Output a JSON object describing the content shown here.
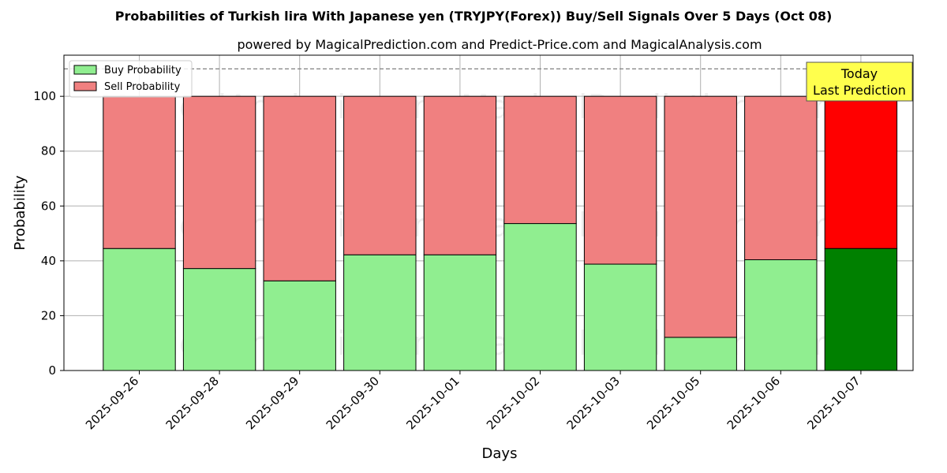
{
  "chart_data": {
    "type": "bar",
    "stacked": true,
    "title": "Probabilities of Turkish lira With Japanese yen (TRYJPY(Forex)) Buy/Sell Signals Over 5 Days (Oct 08)",
    "subtitle": "powered by MagicalPrediction.com and Predict-Price.com and MagicalAnalysis.com",
    "xlabel": "Days",
    "ylabel": "Probability",
    "ylim": [
      0,
      115
    ],
    "yticks": [
      0,
      20,
      40,
      60,
      80,
      100
    ],
    "grid": true,
    "legend_placement": "top-left",
    "reference_line": 110,
    "categories": [
      "2025-09-26",
      "2025-09-28",
      "2025-09-29",
      "2025-09-30",
      "2025-10-01",
      "2025-10-02",
      "2025-10-03",
      "2025-10-05",
      "2025-10-06",
      "2025-10-07"
    ],
    "series": [
      {
        "name": "Buy Probability",
        "color": "#90ee90",
        "values": [
          44.5,
          37.2,
          32.7,
          42.2,
          42.2,
          53.6,
          38.8,
          12.1,
          40.4,
          44.5
        ]
      },
      {
        "name": "Sell Probability",
        "color": "#f08080",
        "values": [
          55.5,
          62.8,
          67.3,
          57.8,
          57.8,
          46.4,
          61.2,
          87.9,
          59.6,
          55.5
        ]
      }
    ],
    "highlight": {
      "index": 9,
      "buy_color": "#008000",
      "sell_color": "#ff0000"
    },
    "annotation": {
      "lines": [
        "Today",
        "Last Prediction"
      ],
      "color": "#ffff4d"
    },
    "watermarks": [
      "MagicalAnalysis.com",
      "MagicalPrediction.com"
    ]
  }
}
